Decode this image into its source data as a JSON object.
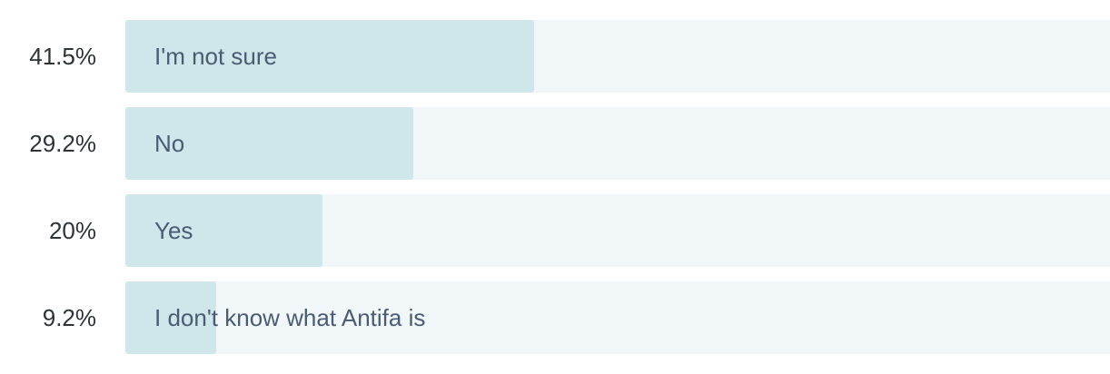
{
  "chart_data": {
    "type": "bar",
    "orientation": "horizontal",
    "max_value": 100,
    "colors": {
      "fill": "#cfe6ea",
      "track": "#f1f6f9",
      "label": "#4a5c72",
      "percent": "#2e3338"
    },
    "categories": [
      "I'm not sure",
      "No",
      "Yes",
      "I don't know what Antifa is"
    ],
    "values": [
      41.5,
      29.2,
      20,
      9.2
    ],
    "value_labels": [
      "41.5%",
      "29.2%",
      "20%",
      "9.2%"
    ]
  }
}
